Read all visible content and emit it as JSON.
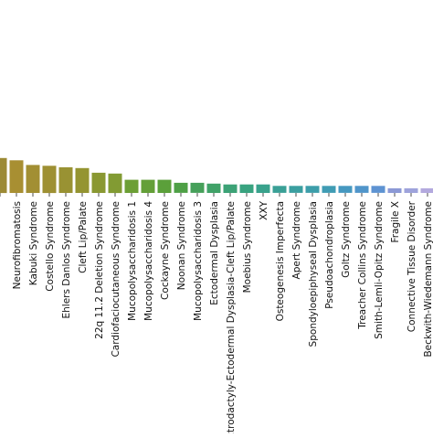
{
  "chart_data": {
    "type": "bar",
    "title": "",
    "xlabel": "",
    "ylabel": "",
    "ylim": [
      0,
      100
    ],
    "grid": false,
    "legend": "none",
    "categories": [
      "",
      "Neurofibromatosis",
      "Kabuki Syndrome",
      "Costello Syndrome",
      "Ehlers Danlos Syndrome",
      "Cleft Lip/Palate",
      "22q 11.2 Deletion Syndrome",
      "Cardiofaciocutaneous Syndrome",
      "Mucopolysaccharidosis 1",
      "Mucopolysaccharidosis 4",
      "Cockayne Syndrome",
      "Noonan Syndrome",
      "Mucopolysaccharidosis 3",
      "Ectodermal Dysplasia",
      "Ectrodactyly-Ectodermal Dysplasia-Cleft Lip/Palate",
      "Moebius Syndrome",
      "XXY",
      "Osteogenesis Imperfecta",
      "Apert Syndrome",
      "Spondyloepiphyseal Dysplasia",
      "Pseudoachondroplasia",
      "Goltz Syndrome",
      "Treacher Collins Syndrome",
      "Smith-Lemli-Opitz Syndrome",
      "Fragile X",
      "Connective Tissue Disorder",
      "Beckwith-Wiedemann Syndrome"
    ],
    "values": [
      45,
      42,
      36,
      35,
      33,
      32,
      26,
      25,
      17,
      17,
      17,
      13,
      13,
      12,
      11,
      11,
      11,
      9,
      9,
      9,
      9,
      9,
      9,
      9,
      6,
      6,
      6
    ],
    "colors": [
      "#9c8a35",
      "#a88f32",
      "#a28f33",
      "#9e9033",
      "#999233",
      "#949431",
      "#8a9832",
      "#829b33",
      "#6c9f35",
      "#649f38",
      "#5ba03a",
      "#4ea046",
      "#46a05a",
      "#40a268",
      "#3ca276",
      "#39a380",
      "#39a28c",
      "#3aa096",
      "#3b9fa0",
      "#3d9eaa",
      "#409cb4",
      "#4698c0",
      "#5095ca",
      "#5e93d2",
      "#8c99d6",
      "#9ea3db",
      "#b3a9de"
    ]
  }
}
